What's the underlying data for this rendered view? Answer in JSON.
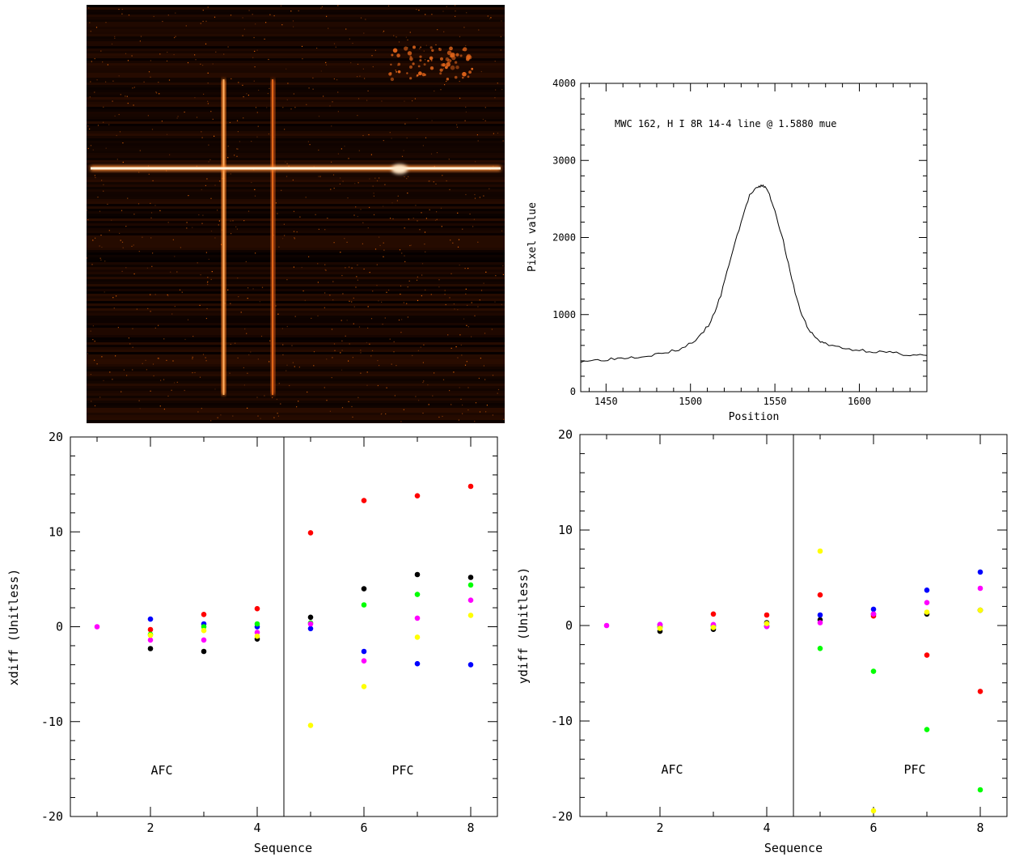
{
  "profile": {
    "annotation": "MWC 162, H I 8R 14-4 line @ 1.5880 mue",
    "chart_data": {
      "type": "line",
      "xlabel": "Position",
      "ylabel": "Pixel value",
      "xlim": [
        1435,
        1640
      ],
      "ylim": [
        0,
        4000
      ],
      "xticks": [
        1450,
        1500,
        1550,
        1600
      ],
      "yticks": [
        0,
        1000,
        2000,
        3000,
        4000
      ],
      "series": [
        {
          "x": [
            1435,
            1445,
            1455,
            1465,
            1475,
            1485,
            1495,
            1505,
            1512,
            1518,
            1524,
            1530,
            1535,
            1540,
            1543,
            1546,
            1550,
            1555,
            1560,
            1565,
            1570,
            1575,
            1580,
            1590,
            1600,
            1610,
            1620,
            1630,
            1640
          ],
          "y": [
            400,
            410,
            430,
            450,
            470,
            500,
            560,
            700,
            900,
            1250,
            1750,
            2200,
            2550,
            2650,
            2680,
            2600,
            2350,
            1950,
            1450,
            1050,
            800,
            680,
            620,
            560,
            540,
            520,
            500,
            480,
            470
          ]
        }
      ]
    }
  },
  "xdiff": {
    "left_label": "AFC",
    "right_label": "PFC",
    "chart_data": {
      "type": "scatter",
      "xlabel": "Sequence",
      "ylabel": "xdiff (Unitless)",
      "xlim": [
        0.5,
        8.5
      ],
      "ylim": [
        -20,
        20
      ],
      "xticks": [
        2,
        4,
        6,
        8
      ],
      "yticks": [
        -20,
        -10,
        0,
        10,
        20
      ],
      "divider_x": 4.5,
      "series": [
        {
          "color": "#ff0000",
          "points": [
            [
              2,
              -0.3
            ],
            [
              3,
              1.3
            ],
            [
              4,
              1.9
            ],
            [
              5,
              9.9
            ],
            [
              6,
              13.3
            ],
            [
              7,
              13.8
            ],
            [
              8,
              14.8
            ]
          ]
        },
        {
          "color": "#000000",
          "points": [
            [
              2,
              -2.3
            ],
            [
              3,
              -2.6
            ],
            [
              4,
              -1.3
            ],
            [
              5,
              1.0
            ],
            [
              6,
              4.0
            ],
            [
              7,
              5.5
            ],
            [
              8,
              5.2
            ]
          ]
        },
        {
          "color": "#0000ff",
          "points": [
            [
              2,
              0.8
            ],
            [
              3,
              0.3
            ],
            [
              4,
              0.0
            ],
            [
              5,
              -0.2
            ],
            [
              6,
              -2.6
            ],
            [
              7,
              -3.9
            ],
            [
              8,
              -4.0
            ]
          ]
        },
        {
          "color": "#00ff00",
          "points": [
            [
              2,
              -0.8
            ],
            [
              3,
              0.0
            ],
            [
              4,
              0.3
            ],
            [
              5,
              0.4
            ],
            [
              6,
              2.3
            ],
            [
              7,
              3.4
            ],
            [
              8,
              4.4
            ]
          ]
        },
        {
          "color": "#ff00ff",
          "points": [
            [
              1,
              0.0
            ],
            [
              2,
              -1.4
            ],
            [
              3,
              -1.4
            ],
            [
              4,
              -0.6
            ],
            [
              5,
              0.3
            ],
            [
              6,
              -3.6
            ],
            [
              7,
              0.9
            ],
            [
              8,
              2.8
            ]
          ]
        },
        {
          "color": "#ffff00",
          "points": [
            [
              2,
              -0.9
            ],
            [
              3,
              -0.4
            ],
            [
              4,
              -1.0
            ],
            [
              5,
              -10.4
            ],
            [
              6,
              -6.3
            ],
            [
              7,
              -1.1
            ],
            [
              8,
              1.2
            ]
          ]
        }
      ]
    }
  },
  "ydiff": {
    "left_label": "AFC",
    "right_label": "PFC",
    "chart_data": {
      "type": "scatter",
      "xlabel": "Sequence",
      "ylabel": "ydiff (Unitless)",
      "xlim": [
        0.5,
        8.5
      ],
      "ylim": [
        -20,
        20
      ],
      "xticks": [
        2,
        4,
        6,
        8
      ],
      "yticks": [
        -20,
        -10,
        0,
        10,
        20
      ],
      "divider_x": 4.5,
      "series": [
        {
          "color": "#ff0000",
          "points": [
            [
              2,
              -0.1
            ],
            [
              3,
              1.2
            ],
            [
              4,
              1.1
            ],
            [
              5,
              3.2
            ],
            [
              6,
              1.0
            ],
            [
              7,
              -3.1
            ],
            [
              8,
              -6.9
            ]
          ]
        },
        {
          "color": "#000000",
          "points": [
            [
              2,
              -0.6
            ],
            [
              3,
              -0.4
            ],
            [
              4,
              0.3
            ],
            [
              5,
              0.6
            ],
            [
              6,
              1.2
            ],
            [
              7,
              1.2
            ],
            [
              8,
              1.6
            ]
          ]
        },
        {
          "color": "#0000ff",
          "points": [
            [
              2,
              0.1
            ],
            [
              3,
              0.0
            ],
            [
              4,
              -0.1
            ],
            [
              5,
              1.1
            ],
            [
              6,
              1.7
            ],
            [
              7,
              3.7
            ],
            [
              8,
              5.6
            ]
          ]
        },
        {
          "color": "#00ff00",
          "points": [
            [
              2,
              -0.2
            ],
            [
              3,
              -0.1
            ],
            [
              4,
              0.0
            ],
            [
              5,
              -2.4
            ],
            [
              6,
              -4.8
            ],
            [
              7,
              -10.9
            ],
            [
              8,
              -17.2
            ]
          ]
        },
        {
          "color": "#ff00ff",
          "points": [
            [
              1,
              0.0
            ],
            [
              2,
              0.1
            ],
            [
              3,
              0.1
            ],
            [
              4,
              -0.1
            ],
            [
              5,
              0.3
            ],
            [
              6,
              1.2
            ],
            [
              7,
              2.4
            ],
            [
              8,
              3.9
            ]
          ]
        },
        {
          "color": "#ffff00",
          "points": [
            [
              2,
              -0.3
            ],
            [
              3,
              -0.2
            ],
            [
              4,
              0.2
            ],
            [
              5,
              7.8
            ],
            [
              6,
              -19.4
            ],
            [
              7,
              1.4
            ],
            [
              8,
              1.6
            ]
          ]
        }
      ]
    }
  }
}
